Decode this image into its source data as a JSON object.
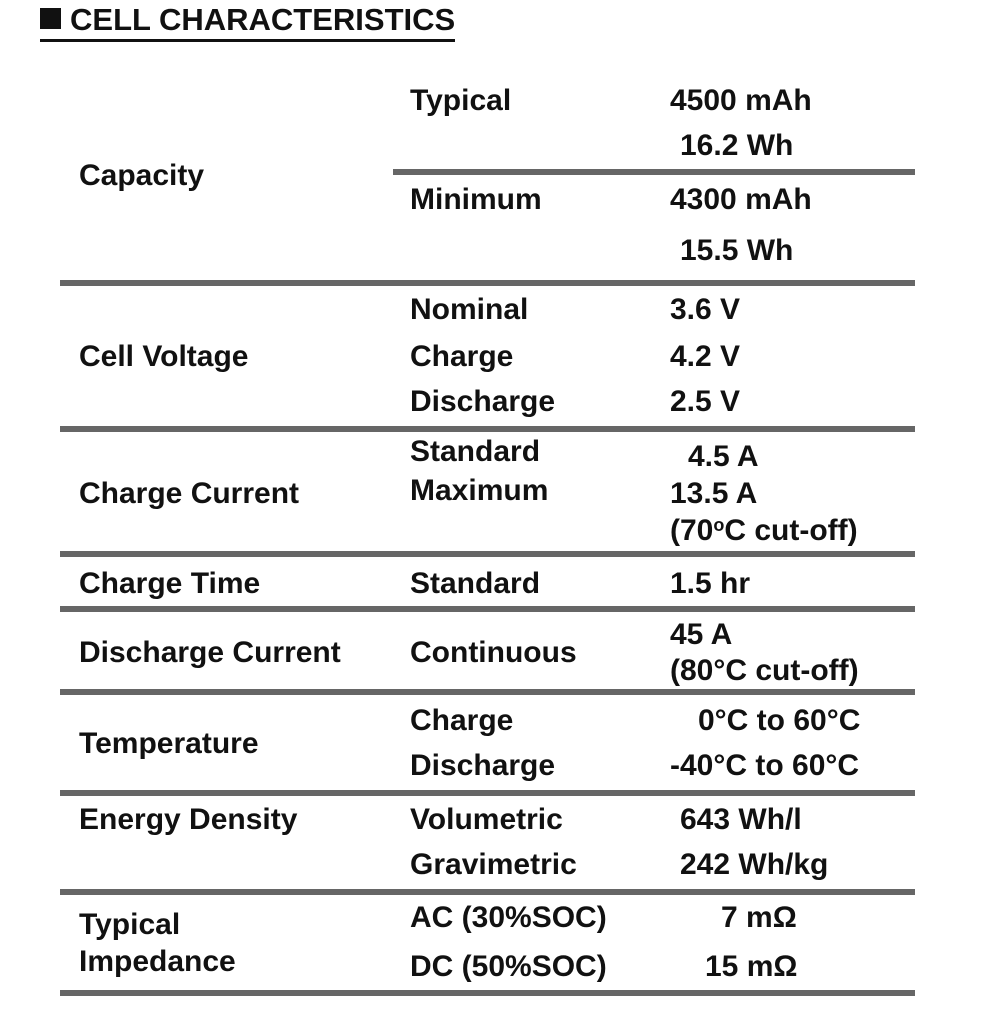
{
  "title": "CELL CHARACTERISTICS",
  "rows": {
    "capacity": {
      "label": "Capacity",
      "typical_label": "Typical",
      "typical_mah": "4500 mAh",
      "typical_wh": "16.2 Wh",
      "minimum_label": "Minimum",
      "minimum_mah": "4300 mAh",
      "minimum_wh": "15.5 Wh"
    },
    "cell_voltage": {
      "label": "Cell Voltage",
      "nominal_label": "Nominal",
      "nominal_value": "3.6 V",
      "charge_label": "Charge",
      "charge_value": "4.2 V",
      "discharge_label": "Discharge",
      "discharge_value": "2.5 V"
    },
    "charge_current": {
      "label": "Charge Current",
      "standard_label": "Standard",
      "standard_value": "4.5 A",
      "maximum_label": "Maximum",
      "maximum_value": "13.5 A",
      "cutoff_pre": "(70",
      "cutoff_deg": "o",
      "cutoff_post": "C cut-off)"
    },
    "charge_time": {
      "label": "Charge Time",
      "standard_label": "Standard",
      "standard_value": "1.5 hr"
    },
    "discharge_current": {
      "label": "Discharge Current",
      "continuous_label": "Continuous",
      "continuous_value": "45 A",
      "cutoff": "(80°C cut-off)"
    },
    "temperature": {
      "label": "Temperature",
      "charge_label": "Charge",
      "charge_value": "0°C to 60°C",
      "discharge_label": "Discharge",
      "discharge_value": "-40°C to 60°C"
    },
    "energy_density": {
      "label": "Energy Density",
      "volumetric_label": "Volumetric",
      "volumetric_value": "643 Wh/l",
      "gravimetric_label": "Gravimetric",
      "gravimetric_value": "242 Wh/kg"
    },
    "impedance": {
      "label_line1": "Typical",
      "label_line2": "Impedance",
      "ac_label": "AC (30%SOC)",
      "ac_value": "7 mΩ",
      "dc_label": "DC (50%SOC)",
      "dc_value": "15 mΩ"
    }
  }
}
